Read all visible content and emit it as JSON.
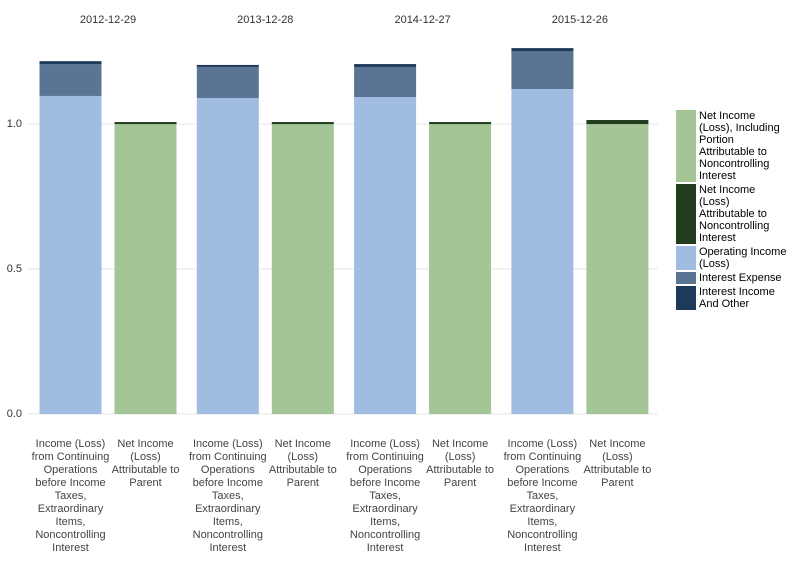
{
  "chart_data": [
    {
      "type": "bar",
      "stacked": true,
      "title": "2012-12-29",
      "categories": [
        "Income (Loss) from Continuing Operations before Income Taxes, Extraordinary Items, Noncontrolling Interest",
        "Net Income (Loss) Attributable to Parent"
      ],
      "series": [
        {
          "name": "Operating Income (Loss)",
          "color": "#a0bce0",
          "values": [
            1.097,
            null
          ]
        },
        {
          "name": "Interest Expense",
          "color": "#5a7494",
          "values": [
            0.11,
            null
          ]
        },
        {
          "name": "Interest Income And Other",
          "color": "#1e3a5a",
          "values": [
            0.01,
            null
          ]
        },
        {
          "name": "Net Income (Loss), Including Portion Attributable to Noncontrolling Interest",
          "color": "#a4c696",
          "values": [
            null,
            1.0
          ]
        },
        {
          "name": "Net Income (Loss) Attributable to Noncontrolling Interest",
          "color": "#223d1e",
          "values": [
            null,
            0.007
          ]
        }
      ],
      "ylim": [
        0,
        1.29
      ],
      "yticks": [
        {
          "value": 0,
          "label": "0.0"
        },
        {
          "value": 0.5,
          "label": "0.5"
        },
        {
          "value": 1,
          "label": "1.0"
        }
      ],
      "grid": true
    },
    {
      "type": "bar",
      "stacked": true,
      "title": "2013-12-28",
      "categories": [
        "Income (Loss) from Continuing Operations before Income Taxes, Extraordinary Items, Noncontrolling Interest",
        "Net Income (Loss) Attributable to Parent"
      ],
      "series": [
        {
          "name": "Operating Income (Loss)",
          "color": "#a0bce0",
          "values": [
            1.09,
            null
          ]
        },
        {
          "name": "Interest Expense",
          "color": "#5a7494",
          "values": [
            0.107,
            null
          ]
        },
        {
          "name": "Interest Income And Other",
          "color": "#1e3a5a",
          "values": [
            0.007,
            null
          ]
        },
        {
          "name": "Net Income (Loss), Including Portion Attributable to Noncontrolling Interest",
          "color": "#a4c696",
          "values": [
            null,
            1.0
          ]
        },
        {
          "name": "Net Income (Loss) Attributable to Noncontrolling Interest",
          "color": "#223d1e",
          "values": [
            null,
            0.007
          ]
        }
      ],
      "ylim": [
        0,
        1.29
      ],
      "yticks": [
        {
          "value": 0,
          "label": "0.0"
        },
        {
          "value": 0.5,
          "label": "0.5"
        },
        {
          "value": 1,
          "label": "1.0"
        }
      ],
      "grid": true
    },
    {
      "type": "bar",
      "stacked": true,
      "title": "2014-12-27",
      "categories": [
        "Income (Loss) from Continuing Operations before Income Taxes, Extraordinary Items, Noncontrolling Interest",
        "Net Income (Loss) Attributable to Parent"
      ],
      "series": [
        {
          "name": "Operating Income (Loss)",
          "color": "#a0bce0",
          "values": [
            1.093,
            null
          ]
        },
        {
          "name": "Interest Expense",
          "color": "#5a7494",
          "values": [
            0.104,
            null
          ]
        },
        {
          "name": "Interest Income And Other",
          "color": "#1e3a5a",
          "values": [
            0.01,
            null
          ]
        },
        {
          "name": "Net Income (Loss), Including Portion Attributable to Noncontrolling Interest",
          "color": "#a4c696",
          "values": [
            null,
            1.0
          ]
        },
        {
          "name": "Net Income (Loss) Attributable to Noncontrolling Interest",
          "color": "#223d1e",
          "values": [
            null,
            0.007
          ]
        }
      ],
      "ylim": [
        0,
        1.29
      ],
      "yticks": [
        {
          "value": 0,
          "label": "0.0"
        },
        {
          "value": 0.5,
          "label": "0.5"
        },
        {
          "value": 1,
          "label": "1.0"
        }
      ],
      "grid": true
    },
    {
      "type": "bar",
      "stacked": true,
      "title": "2015-12-26",
      "categories": [
        "Income (Loss) from Continuing Operations before Income Taxes, Extraordinary Items, Noncontrolling Interest",
        "Net Income (Loss) Attributable to Parent"
      ],
      "series": [
        {
          "name": "Operating Income (Loss)",
          "color": "#a0bce0",
          "values": [
            1.121,
            null
          ]
        },
        {
          "name": "Interest Expense",
          "color": "#5a7494",
          "values": [
            0.131,
            null
          ]
        },
        {
          "name": "Interest Income And Other",
          "color": "#1e3a5a",
          "values": [
            0.01,
            null
          ]
        },
        {
          "name": "Net Income (Loss), Including Portion Attributable to Noncontrolling Interest",
          "color": "#a4c696",
          "values": [
            null,
            1.0
          ]
        },
        {
          "name": "Net Income (Loss) Attributable to Noncontrolling Interest",
          "color": "#223d1e",
          "values": [
            null,
            0.014
          ]
        }
      ],
      "ylim": [
        0,
        1.29
      ],
      "yticks": [
        {
          "value": 0,
          "label": "0.0"
        },
        {
          "value": 0.5,
          "label": "0.5"
        },
        {
          "value": 1,
          "label": "1.0"
        }
      ],
      "grid": true
    }
  ]
}
